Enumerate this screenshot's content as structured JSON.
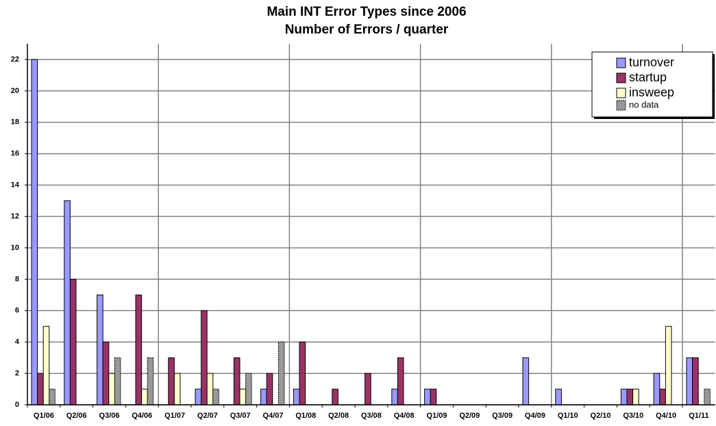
{
  "chart_data": {
    "type": "bar",
    "title": "Main INT Error Types since 2006",
    "subtitle": "Number of Errors / quarter",
    "categories": [
      "Q1/06",
      "Q2/06",
      "Q3/06",
      "Q4/06",
      "Q1/07",
      "Q2/07",
      "Q3/07",
      "Q4/07",
      "Q1/08",
      "Q2/08",
      "Q3/08",
      "Q4/08",
      "Q1/09",
      "Q2/09",
      "Q3/09",
      "Q4/09",
      "Q1/10",
      "Q2/10",
      "Q3/10",
      "Q4/10",
      "Q1/11"
    ],
    "series": [
      {
        "name": "turnover",
        "color": "#9999ff",
        "values": [
          22,
          13,
          7,
          0,
          0,
          1,
          0,
          1,
          1,
          0,
          0,
          1,
          1,
          0,
          0,
          3,
          1,
          0,
          1,
          2,
          3
        ]
      },
      {
        "name": "startup",
        "color": "#993366",
        "values": [
          2,
          8,
          4,
          7,
          3,
          6,
          3,
          2,
          4,
          1,
          2,
          3,
          1,
          0,
          0,
          0,
          0,
          0,
          1,
          1,
          3
        ]
      },
      {
        "name": "insweep",
        "color": "#ffffcc",
        "values": [
          5,
          0,
          2,
          1,
          2,
          2,
          1,
          0,
          0,
          0,
          0,
          0,
          0,
          0,
          0,
          0,
          0,
          0,
          1,
          5,
          0
        ]
      },
      {
        "name": "no data",
        "color": "#999999",
        "values": [
          1,
          0,
          3,
          3,
          0,
          1,
          2,
          4,
          0,
          0,
          0,
          0,
          0,
          0,
          0,
          0,
          0,
          0,
          0,
          0,
          1
        ]
      }
    ],
    "ylim": [
      0,
      22
    ],
    "yticks": [
      0,
      2,
      4,
      6,
      8,
      10,
      12,
      14,
      16,
      18,
      20,
      22
    ],
    "grid": true,
    "legend": "top-right"
  }
}
